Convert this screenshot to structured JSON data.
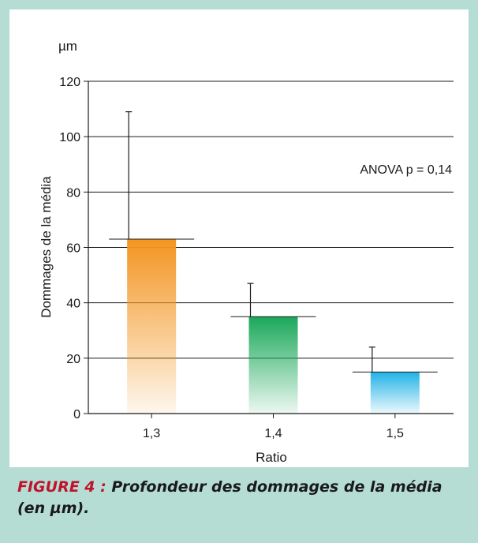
{
  "chart_data": {
    "type": "bar",
    "title": "",
    "unit_label": "µm",
    "xlabel": "Ratio",
    "ylabel": "Dommages de la média",
    "categories": [
      "1,3",
      "1,4",
      "1,5"
    ],
    "values": [
      63,
      35,
      15
    ],
    "error_bars": [
      46,
      12,
      9
    ],
    "yticks": [
      "0",
      "20",
      "40",
      "60",
      "80",
      "100",
      "120"
    ],
    "ylim": [
      0,
      120
    ],
    "grid": true,
    "annotation": "ANOVA p = 0,14",
    "colors": [
      "#f39521",
      "#1aa85a",
      "#22b2e6"
    ]
  },
  "caption": {
    "label": "FIGURE 4 :",
    "text": "Profondeur des dommages de la média (en µm)."
  }
}
